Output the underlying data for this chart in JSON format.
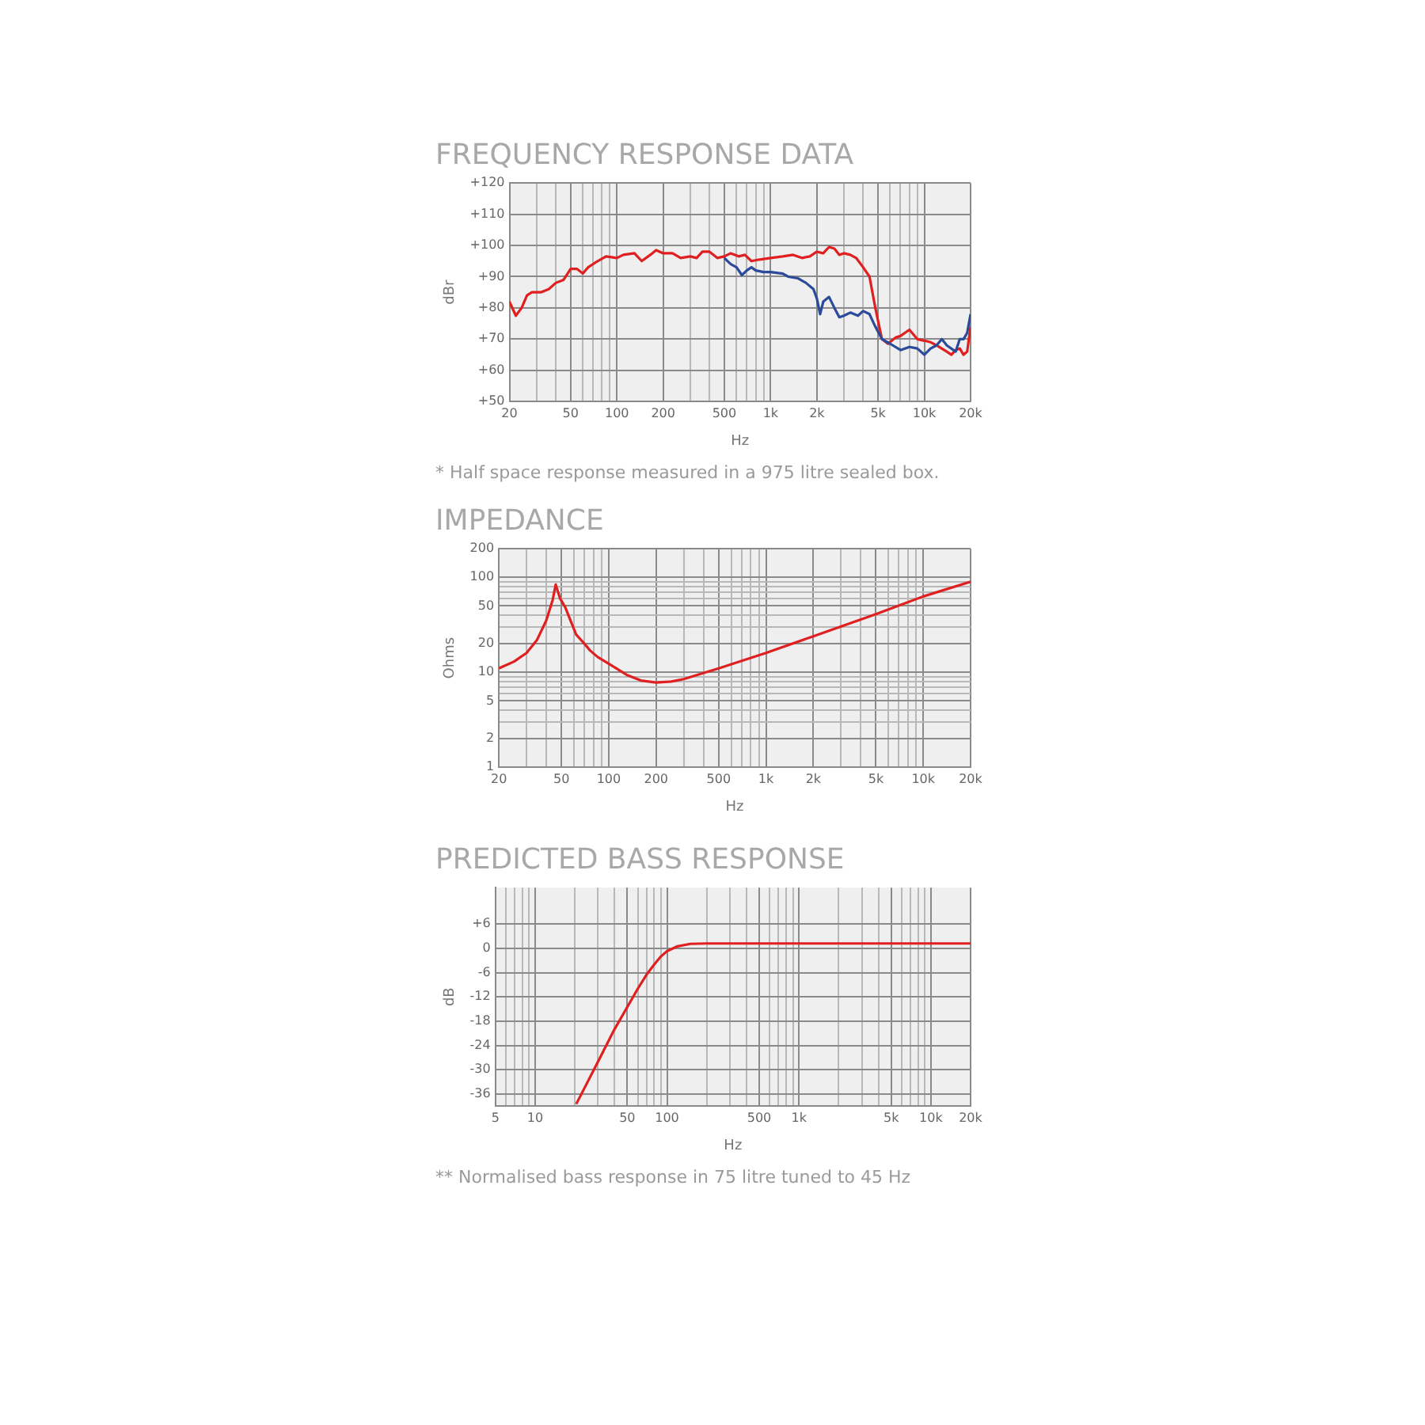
{
  "chart_data": [
    {
      "type": "line",
      "title": "FREQUENCY RESPONSE DATA",
      "xlabel": "Hz",
      "ylabel": "dBr",
      "annotations": [
        "* Half space response measured in a 975 litre sealed box."
      ],
      "log": "x",
      "grid": true,
      "legend": false,
      "marker": "none",
      "line_style": "solid",
      "xlim": [
        20,
        20000
      ],
      "ylim": [
        50,
        120
      ],
      "xticks": [
        20,
        {
          "value": 30,
          "label": null
        },
        {
          "value": 40,
          "label": null
        },
        50,
        {
          "value": 60,
          "label": null
        },
        {
          "value": 70,
          "label": null
        },
        {
          "value": 80,
          "label": null
        },
        {
          "value": 90,
          "label": null
        },
        100,
        200,
        {
          "value": 300,
          "label": null
        },
        {
          "value": 400,
          "label": null
        },
        500,
        {
          "value": 600,
          "label": null
        },
        {
          "value": 700,
          "label": null
        },
        {
          "value": 800,
          "label": null
        },
        {
          "value": 900,
          "label": null
        },
        {
          "value": 1000,
          "label": "1k"
        },
        {
          "value": 2000,
          "label": "2k"
        },
        {
          "value": 3000,
          "label": null
        },
        {
          "value": 4000,
          "label": null
        },
        {
          "value": 5000,
          "label": "5k"
        },
        {
          "value": 6000,
          "label": null
        },
        {
          "value": 7000,
          "label": null
        },
        {
          "value": 8000,
          "label": null
        },
        {
          "value": 9000,
          "label": null
        },
        {
          "value": 10000,
          "label": "10k"
        },
        {
          "value": 20000,
          "label": "20k"
        }
      ],
      "yticks": [
        {
          "value": 50,
          "label": "+50"
        },
        {
          "value": 60,
          "label": "+60"
        },
        {
          "value": 70,
          "label": "+70"
        },
        {
          "value": 80,
          "label": "+80"
        },
        {
          "value": 90,
          "label": "+90"
        },
        {
          "value": 100,
          "label": "+100"
        },
        {
          "value": 110,
          "label": "+110"
        },
        {
          "value": 120,
          "label": "+120"
        }
      ],
      "series": [
        {
          "color": "#2b4a9a",
          "x": [
            500,
            550,
            600,
            650,
            700,
            750,
            800,
            900,
            1000,
            1200,
            1300,
            1500,
            1700,
            1900,
            2000,
            2100,
            2200,
            2400,
            2600,
            2800,
            3000,
            3300,
            3700,
            4000,
            4400,
            4800,
            5300,
            6000,
            7000,
            8000,
            9000,
            10000,
            11000,
            12000,
            13000,
            14000,
            16000,
            17000,
            18000,
            19000,
            20000
          ],
          "values": [
            96,
            94,
            93,
            90.5,
            92,
            93,
            92,
            91.5,
            91.5,
            91,
            90,
            89.5,
            88,
            86,
            83,
            78,
            82,
            83.5,
            80,
            77,
            77.5,
            78.5,
            77.5,
            79,
            78,
            74,
            70,
            68.5,
            66.5,
            67.5,
            67,
            65,
            67,
            68,
            70,
            68,
            66,
            70,
            70,
            72,
            78
          ]
        },
        {
          "color": "#e02020",
          "x": [
            20,
            22,
            24,
            26,
            28,
            32,
            36,
            40,
            45,
            50,
            55,
            60,
            65,
            75,
            85,
            100,
            110,
            130,
            145,
            165,
            180,
            200,
            230,
            260,
            300,
            330,
            360,
            400,
            450,
            500,
            550,
            620,
            680,
            750,
            850,
            1000,
            1200,
            1400,
            1600,
            1800,
            2000,
            2200,
            2400,
            2600,
            2800,
            3000,
            3300,
            3600,
            4000,
            4400,
            4800,
            5300,
            5800,
            6500,
            7000,
            8000,
            9000,
            10000,
            11000,
            12000,
            14000,
            15000,
            16000,
            17000,
            18000,
            19000,
            20000
          ],
          "values": [
            82,
            77.5,
            80,
            84,
            85,
            85,
            86,
            88,
            89,
            92.5,
            92.5,
            91,
            93,
            95,
            96.5,
            96,
            97,
            97.5,
            95,
            97,
            98.5,
            97.5,
            97.5,
            96,
            96.5,
            96,
            98,
            98,
            96,
            96.5,
            97.5,
            96.5,
            97,
            95,
            95.5,
            96,
            96.5,
            97,
            96,
            96.5,
            98,
            97.5,
            99.5,
            99,
            97,
            97.5,
            97,
            96,
            93,
            90,
            80,
            70,
            68.5,
            70.5,
            71,
            73,
            70,
            69.5,
            69,
            68,
            66,
            65,
            66.5,
            67,
            65,
            66,
            74
          ]
        }
      ]
    },
    {
      "type": "line",
      "title": "IMPEDANCE",
      "xlabel": "Hz",
      "ylabel": "Ohms",
      "log": "xy",
      "grid": true,
      "legend": false,
      "marker": "none",
      "line_style": "solid",
      "xlim": [
        20,
        20000
      ],
      "ylim": [
        1,
        200
      ],
      "xticks": [
        20,
        {
          "value": 30,
          "label": null
        },
        {
          "value": 40,
          "label": null
        },
        50,
        {
          "value": 60,
          "label": null
        },
        {
          "value": 70,
          "label": null
        },
        {
          "value": 80,
          "label": null
        },
        {
          "value": 90,
          "label": null
        },
        100,
        200,
        {
          "value": 300,
          "label": null
        },
        {
          "value": 400,
          "label": null
        },
        500,
        {
          "value": 600,
          "label": null
        },
        {
          "value": 700,
          "label": null
        },
        {
          "value": 800,
          "label": null
        },
        {
          "value": 900,
          "label": null
        },
        {
          "value": 1000,
          "label": "1k"
        },
        {
          "value": 2000,
          "label": "2k"
        },
        {
          "value": 3000,
          "label": null
        },
        {
          "value": 4000,
          "label": null
        },
        {
          "value": 5000,
          "label": "5k"
        },
        {
          "value": 6000,
          "label": null
        },
        {
          "value": 7000,
          "label": null
        },
        {
          "value": 8000,
          "label": null
        },
        {
          "value": 9000,
          "label": null
        },
        {
          "value": 10000,
          "label": "10k"
        },
        {
          "value": 20000,
          "label": "20k"
        }
      ],
      "yticks": [
        1,
        2,
        {
          "value": 3,
          "label": null
        },
        {
          "value": 4,
          "label": null
        },
        5,
        {
          "value": 6,
          "label": null
        },
        {
          "value": 7,
          "label": null
        },
        {
          "value": 8,
          "label": null
        },
        {
          "value": 9,
          "label": null
        },
        10,
        20,
        {
          "value": 30,
          "label": null
        },
        {
          "value": 40,
          "label": null
        },
        50,
        {
          "value": 60,
          "label": null
        },
        {
          "value": 70,
          "label": null
        },
        {
          "value": 80,
          "label": null
        },
        {
          "value": 90,
          "label": null
        },
        100,
        200
      ],
      "series": [
        {
          "color": "#e02020",
          "x": [
            20,
            25,
            30,
            35,
            40,
            44,
            46,
            49,
            53,
            58,
            62,
            70,
            76,
            85,
            100,
            130,
            160,
            200,
            250,
            300,
            500,
            1000,
            2000,
            5000,
            10000,
            20000
          ],
          "values": [
            11,
            13,
            16,
            22,
            35,
            58,
            84,
            60,
            48,
            33,
            25,
            20,
            17,
            14.5,
            12.3,
            9.4,
            8.2,
            7.8,
            8,
            8.5,
            11,
            16,
            24,
            41,
            63,
            90
          ]
        }
      ]
    },
    {
      "type": "line",
      "title": "PREDICTED BASS RESPONSE",
      "xlabel": "Hz",
      "ylabel": "dB",
      "annotations": [
        "** Normalised bass response in 75 litre tuned to 45 Hz"
      ],
      "log": "x",
      "grid": true,
      "legend": false,
      "marker": "none",
      "line_style": "solid",
      "xlim": [
        5,
        20000
      ],
      "ylim": [
        -39,
        15
      ],
      "xticks": [
        5,
        {
          "value": 6,
          "label": null
        },
        {
          "value": 7,
          "label": null
        },
        {
          "value": 8,
          "label": null
        },
        {
          "value": 9,
          "label": null
        },
        10,
        {
          "value": 20,
          "label": null
        },
        {
          "value": 30,
          "label": null
        },
        {
          "value": 40,
          "label": null
        },
        50,
        {
          "value": 60,
          "label": null
        },
        {
          "value": 70,
          "label": null
        },
        {
          "value": 80,
          "label": null
        },
        {
          "value": 90,
          "label": null
        },
        100,
        {
          "value": 200,
          "label": null
        },
        {
          "value": 300,
          "label": null
        },
        {
          "value": 400,
          "label": null
        },
        500,
        {
          "value": 600,
          "label": null
        },
        {
          "value": 700,
          "label": null
        },
        {
          "value": 800,
          "label": null
        },
        {
          "value": 900,
          "label": null
        },
        {
          "value": 1000,
          "label": "1k"
        },
        {
          "value": 2000,
          "label": null
        },
        {
          "value": 3000,
          "label": null
        },
        {
          "value": 4000,
          "label": null
        },
        {
          "value": 5000,
          "label": "5k"
        },
        {
          "value": 6000,
          "label": null
        },
        {
          "value": 7000,
          "label": null
        },
        {
          "value": 8000,
          "label": null
        },
        {
          "value": 9000,
          "label": null
        },
        {
          "value": 10000,
          "label": "10k"
        },
        {
          "value": 20000,
          "label": "20k"
        }
      ],
      "yticks": [
        {
          "value": -36,
          "label": "-36"
        },
        {
          "value": -30,
          "label": "-30"
        },
        {
          "value": -24,
          "label": "-24"
        },
        {
          "value": -18,
          "label": "-18"
        },
        {
          "value": -12,
          "label": "-12"
        },
        {
          "value": -6,
          "label": "-6"
        },
        0,
        {
          "value": 6,
          "label": "+6"
        }
      ],
      "series": [
        {
          "color": "#e02020",
          "x": [
            20.5,
            30,
            40,
            50,
            60,
            70,
            80,
            90,
            100,
            120,
            150,
            200,
            20000
          ],
          "values": [
            -38.5,
            -28,
            -20,
            -14.5,
            -10,
            -6.5,
            -4,
            -2,
            -0.7,
            0.5,
            1.1,
            1.2,
            1.2
          ]
        }
      ]
    }
  ]
}
